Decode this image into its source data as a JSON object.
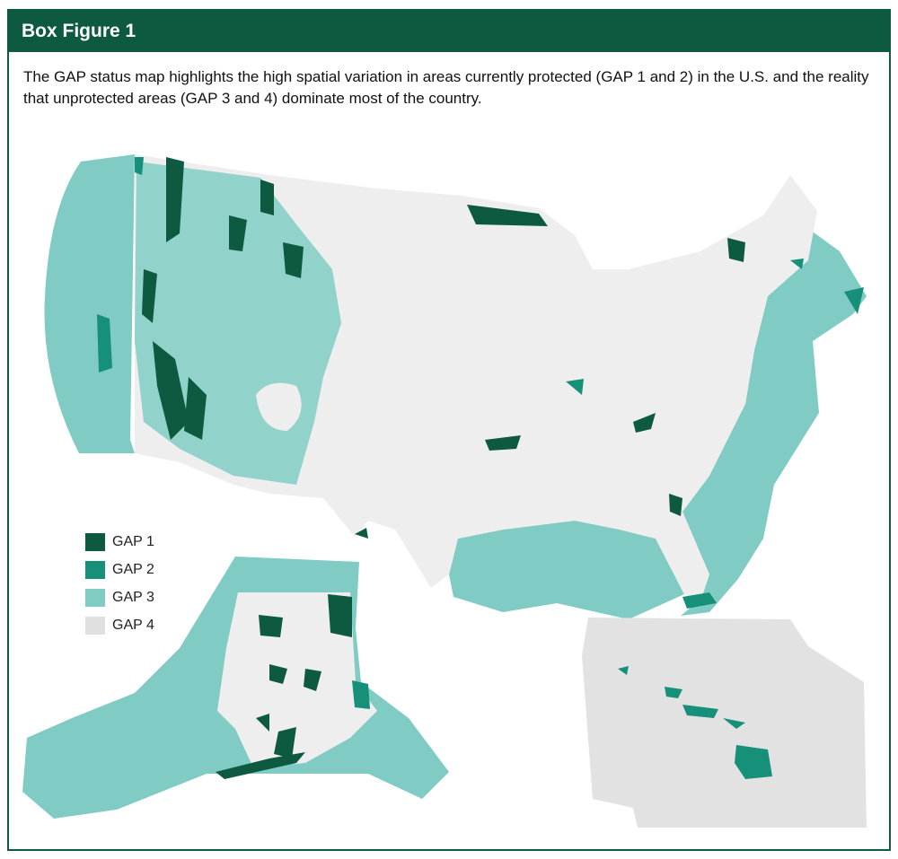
{
  "header": {
    "title": "Box Figure 1"
  },
  "caption": "The GAP status map highlights the high spatial variation in areas currently protected (GAP 1 and 2) in the U.S. and the reality that unprotected areas (GAP 3 and 4) dominate most of the country.",
  "legend": [
    {
      "label": "GAP 1",
      "color": "#0e5a40"
    },
    {
      "label": "GAP 2",
      "color": "#17907a"
    },
    {
      "label": "GAP 3",
      "color": "#80ccc4"
    },
    {
      "label": "GAP 4",
      "color": "#e0e0e0"
    }
  ]
}
